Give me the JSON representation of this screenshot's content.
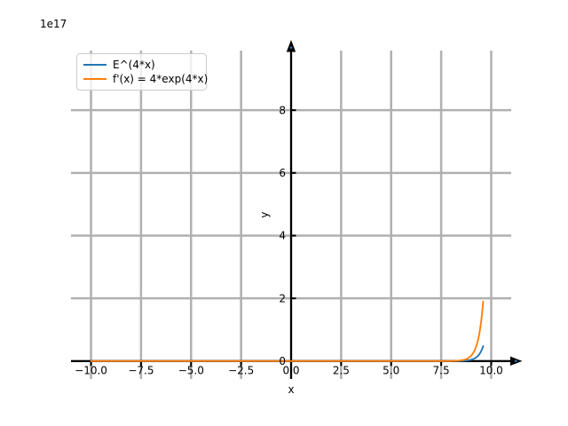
{
  "figure": {
    "offset_text": "1e17",
    "xlabel": "x",
    "ylabel": "y",
    "background_color": "#ffffff"
  },
  "legend": {
    "items": [
      {
        "label": "E^(4*x)",
        "color": "#1f77b4"
      },
      {
        "label": "f'(x) = 4*exp(4*x)",
        "color": "#ff7f0e"
      }
    ]
  },
  "chart_data": {
    "type": "line",
    "title": "",
    "xlabel": "x",
    "ylabel": "y",
    "y_offset_label": "1e17",
    "grid": true,
    "grid_color": "#b0b0b0",
    "axis_color": "#000000",
    "arrow_dot_color": "#1f77b4",
    "xlim": [
      -11,
      11
    ],
    "ylim_1e17": [
      -0.57,
      9.9
    ],
    "x_tick_values": [
      -10,
      -7.5,
      -5,
      -2.5,
      0,
      2.5,
      5,
      7.5,
      10
    ],
    "x_tick_labels": [
      "−10.0",
      "−7.5",
      "−5.0",
      "−2.5",
      "0.0",
      "2.5",
      "5.0",
      "7.5",
      "10.0"
    ],
    "y_tick_values_1e17": [
      0,
      2,
      4,
      6,
      8
    ],
    "y_tick_labels": [
      "0",
      "2",
      "4",
      "6",
      "8"
    ],
    "legend_position": "upper left",
    "series": [
      {
        "name": "E^(4*x)",
        "color": "#1f77b4",
        "expression": "y = exp(4*x)",
        "coefficient": 1,
        "rate": 4,
        "x_start": -10,
        "x_end": 9.6,
        "sample_points_x_y1e17": [
          [
            -10,
            0
          ],
          [
            0,
            0
          ],
          [
            8,
            0.0008
          ],
          [
            8.5,
            0.0058
          ],
          [
            9,
            0.0431
          ],
          [
            9.3,
            0.143
          ],
          [
            9.6,
            0.475
          ]
        ]
      },
      {
        "name": "f'(x) = 4*exp(4*x)",
        "color": "#ff7f0e",
        "expression": "y = 4*exp(4*x)",
        "coefficient": 4,
        "rate": 4,
        "x_start": -10,
        "x_end": 9.6,
        "sample_points_x_y1e17": [
          [
            -10,
            0
          ],
          [
            0,
            0
          ],
          [
            8,
            0.0032
          ],
          [
            8.5,
            0.0233
          ],
          [
            9,
            0.172
          ],
          [
            9.3,
            0.572
          ],
          [
            9.6,
            1.902
          ]
        ]
      }
    ]
  }
}
